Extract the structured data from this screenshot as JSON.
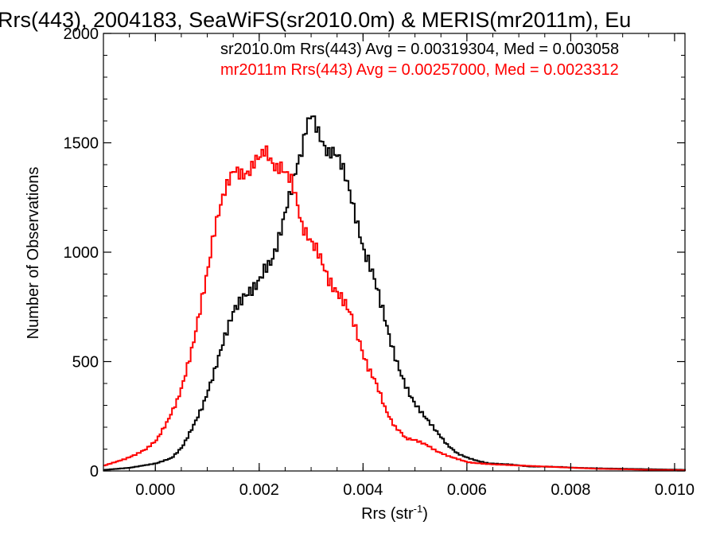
{
  "chart_data": {
    "type": "line",
    "title": "Rrs(443), 2004183, SeaWiFS(sr2010.0m) & MERIS(mr2011m), Eu",
    "xlabel": "Rrs (str",
    "xlabel_sup": "-1",
    "xlabel_close": ")",
    "ylabel": "Number of Observations",
    "xlim": [
      -0.001,
      0.0102
    ],
    "ylim": [
      0,
      2000
    ],
    "x_ticks": [
      {
        "value": 0.0,
        "label": "0.000"
      },
      {
        "value": 0.002,
        "label": "0.002"
      },
      {
        "value": 0.004,
        "label": "0.004"
      },
      {
        "value": 0.006,
        "label": "0.006"
      },
      {
        "value": 0.008,
        "label": "0.008"
      },
      {
        "value": 0.01,
        "label": "0.010"
      }
    ],
    "y_ticks": [
      {
        "value": 0,
        "label": "0"
      },
      {
        "value": 500,
        "label": "500"
      },
      {
        "value": 1000,
        "label": "1000"
      },
      {
        "value": 1500,
        "label": "1500"
      },
      {
        "value": 2000,
        "label": "2000"
      }
    ],
    "grid": false,
    "legend_position": "top-right",
    "annotations": [
      {
        "text": "sr2010.0m Rrs(443) Avg = 0.00319304, Med = 0.003058",
        "color": "#000000"
      },
      {
        "text": "mr2011m Rrs(443) Avg = 0.00257000, Med = 0.0023312",
        "color": "#ff0000"
      }
    ],
    "series": [
      {
        "color": "#000000",
        "step": true,
        "points": [
          [
            -0.001,
            5
          ],
          [
            -0.0005,
            15
          ],
          [
            0.0,
            35
          ],
          [
            0.0003,
            60
          ],
          [
            0.0005,
            110
          ],
          [
            0.0007,
            200
          ],
          [
            0.0009,
            300
          ],
          [
            0.0011,
            440
          ],
          [
            0.0013,
            600
          ],
          [
            0.0015,
            740
          ],
          [
            0.0017,
            800
          ],
          [
            0.0019,
            840
          ],
          [
            0.002,
            880
          ],
          [
            0.0021,
            930
          ],
          [
            0.0022,
            950
          ],
          [
            0.0023,
            1010
          ],
          [
            0.0024,
            1100
          ],
          [
            0.0025,
            1200
          ],
          [
            0.0026,
            1290
          ],
          [
            0.0027,
            1390
          ],
          [
            0.0028,
            1460
          ],
          [
            0.0029,
            1590
          ],
          [
            0.003,
            1630
          ],
          [
            0.0031,
            1560
          ],
          [
            0.0032,
            1500
          ],
          [
            0.0033,
            1450
          ],
          [
            0.0034,
            1460
          ],
          [
            0.0035,
            1440
          ],
          [
            0.0036,
            1380
          ],
          [
            0.0037,
            1300
          ],
          [
            0.0038,
            1200
          ],
          [
            0.0039,
            1100
          ],
          [
            0.004,
            1000
          ],
          [
            0.0041,
            950
          ],
          [
            0.0042,
            880
          ],
          [
            0.0043,
            790
          ],
          [
            0.0044,
            700
          ],
          [
            0.0045,
            600
          ],
          [
            0.0046,
            520
          ],
          [
            0.0047,
            450
          ],
          [
            0.0048,
            390
          ],
          [
            0.0049,
            340
          ],
          [
            0.005,
            300
          ],
          [
            0.0052,
            240
          ],
          [
            0.0054,
            180
          ],
          [
            0.0056,
            120
          ],
          [
            0.0058,
            80
          ],
          [
            0.006,
            60
          ],
          [
            0.0062,
            45
          ],
          [
            0.0064,
            35
          ],
          [
            0.0066,
            32
          ],
          [
            0.0068,
            30
          ],
          [
            0.007,
            25
          ],
          [
            0.0072,
            20
          ],
          [
            0.0075,
            20
          ],
          [
            0.0078,
            18
          ],
          [
            0.008,
            15
          ],
          [
            0.0085,
            12
          ],
          [
            0.009,
            10
          ],
          [
            0.0095,
            8
          ],
          [
            0.01,
            6
          ],
          [
            0.0102,
            5
          ]
        ]
      },
      {
        "color": "#ff0000",
        "step": true,
        "points": [
          [
            -0.001,
            25
          ],
          [
            -0.0008,
            40
          ],
          [
            -0.0006,
            55
          ],
          [
            -0.0004,
            75
          ],
          [
            -0.0002,
            100
          ],
          [
            0.0,
            140
          ],
          [
            0.0001,
            180
          ],
          [
            0.0002,
            220
          ],
          [
            0.0003,
            270
          ],
          [
            0.0004,
            320
          ],
          [
            0.0005,
            390
          ],
          [
            0.0006,
            480
          ],
          [
            0.0007,
            570
          ],
          [
            0.0008,
            690
          ],
          [
            0.0009,
            810
          ],
          [
            0.001,
            930
          ],
          [
            0.0011,
            1080
          ],
          [
            0.0012,
            1180
          ],
          [
            0.0013,
            1270
          ],
          [
            0.0014,
            1330
          ],
          [
            0.0015,
            1380
          ],
          [
            0.0016,
            1360
          ],
          [
            0.0017,
            1350
          ],
          [
            0.0018,
            1370
          ],
          [
            0.0019,
            1420
          ],
          [
            0.002,
            1440
          ],
          [
            0.0021,
            1470
          ],
          [
            0.0022,
            1420
          ],
          [
            0.0023,
            1380
          ],
          [
            0.0024,
            1390
          ],
          [
            0.0025,
            1360
          ],
          [
            0.0026,
            1330
          ],
          [
            0.0027,
            1240
          ],
          [
            0.0028,
            1120
          ],
          [
            0.0029,
            1080
          ],
          [
            0.003,
            1040
          ],
          [
            0.0031,
            1010
          ],
          [
            0.0032,
            950
          ],
          [
            0.0033,
            880
          ],
          [
            0.0034,
            840
          ],
          [
            0.0035,
            810
          ],
          [
            0.0036,
            780
          ],
          [
            0.0037,
            740
          ],
          [
            0.0038,
            680
          ],
          [
            0.0039,
            600
          ],
          [
            0.004,
            520
          ],
          [
            0.0041,
            460
          ],
          [
            0.0042,
            420
          ],
          [
            0.0043,
            360
          ],
          [
            0.0044,
            290
          ],
          [
            0.0045,
            240
          ],
          [
            0.0046,
            200
          ],
          [
            0.0047,
            180
          ],
          [
            0.0048,
            150
          ],
          [
            0.005,
            140
          ],
          [
            0.0052,
            120
          ],
          [
            0.0054,
            90
          ],
          [
            0.0056,
            70
          ],
          [
            0.0058,
            55
          ],
          [
            0.006,
            40
          ],
          [
            0.0062,
            35
          ],
          [
            0.0065,
            30
          ],
          [
            0.007,
            25
          ],
          [
            0.0075,
            20
          ],
          [
            0.008,
            15
          ],
          [
            0.0085,
            10
          ],
          [
            0.009,
            8
          ],
          [
            0.0095,
            5
          ],
          [
            0.01,
            4
          ],
          [
            0.0102,
            3
          ]
        ]
      }
    ]
  }
}
